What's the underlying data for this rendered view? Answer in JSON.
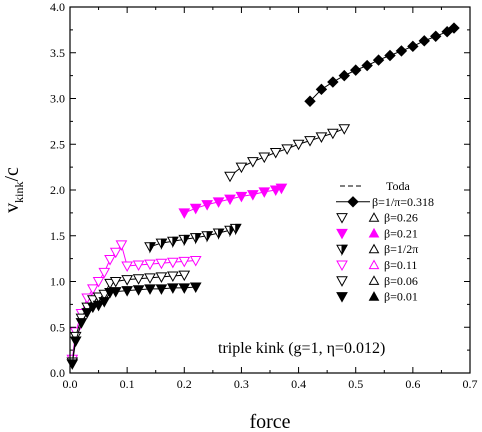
{
  "chart_data": {
    "type": "scatter",
    "xlabel": "force",
    "ylabel_main": "v",
    "ylabel_sub": "kink",
    "ylabel_tail": "/c",
    "xlim": [
      0.0,
      0.7
    ],
    "ylim": [
      0.0,
      4.0
    ],
    "xticks": [
      "0.0",
      "0.1",
      "0.2",
      "0.3",
      "0.4",
      "0.5",
      "0.6",
      "0.7"
    ],
    "yticks": [
      "0.0",
      "0.5",
      "1.0",
      "1.5",
      "2.0",
      "2.5",
      "3.0",
      "3.5",
      "4.0"
    ],
    "grid": false,
    "legend_position": "right",
    "annotation": "triple kink (g=1, η=0.012)",
    "legend": [
      {
        "label": "Toda",
        "style": "dashed-line",
        "color": "#000000"
      },
      {
        "label": "β=1/π=0.318",
        "style": "diamond-line",
        "color": "#000000"
      },
      {
        "label": "β=0.26",
        "style": "open-pair",
        "color": "#000000"
      },
      {
        "label": "β=0.21",
        "style": "filled-pair",
        "color": "#ff00ff"
      },
      {
        "label": "β=1/2π",
        "style": "half-pair",
        "color": "#000000"
      },
      {
        "label": "β=0.11",
        "style": "open-pair",
        "color": "#ff00ff"
      },
      {
        "label": "β=0.06",
        "style": "open-pair",
        "color": "#000000"
      },
      {
        "label": "β=0.01",
        "style": "filled-pair",
        "color": "#000000"
      }
    ],
    "series": [
      {
        "name": "β=1/π=0.318",
        "color": "#000000",
        "marker": "diamond",
        "x": [
          0.42,
          0.44,
          0.46,
          0.48,
          0.5,
          0.52,
          0.54,
          0.56,
          0.58,
          0.6,
          0.62,
          0.64,
          0.66,
          0.672
        ],
        "y": [
          2.97,
          3.1,
          3.18,
          3.25,
          3.31,
          3.36,
          3.42,
          3.47,
          3.52,
          3.57,
          3.63,
          3.68,
          3.73,
          3.77
        ]
      },
      {
        "name": "β=0.26",
        "color": "#000000",
        "marker": "tri-open",
        "x": [
          0.28,
          0.3,
          0.32,
          0.34,
          0.36,
          0.38,
          0.4,
          0.42,
          0.44,
          0.46,
          0.48
        ],
        "y": [
          2.15,
          2.25,
          2.31,
          2.36,
          2.41,
          2.45,
          2.5,
          2.54,
          2.58,
          2.62,
          2.67
        ]
      },
      {
        "name": "β=0.21",
        "color": "#ff00ff",
        "marker": "tri-filled",
        "x": [
          0.2,
          0.22,
          0.24,
          0.26,
          0.28,
          0.3,
          0.32,
          0.34,
          0.36,
          0.37
        ],
        "y": [
          1.75,
          1.8,
          1.84,
          1.87,
          1.9,
          1.93,
          1.95,
          1.98,
          2.0,
          2.02
        ]
      },
      {
        "name": "β=1/2π",
        "color": "#000000",
        "marker": "tri-half",
        "x": [
          0.14,
          0.16,
          0.18,
          0.2,
          0.22,
          0.24,
          0.26,
          0.28,
          0.29
        ],
        "y": [
          1.38,
          1.42,
          1.44,
          1.46,
          1.48,
          1.5,
          1.53,
          1.56,
          1.58
        ]
      },
      {
        "name": "β=0.11",
        "color": "#ff00ff",
        "marker": "tri-open",
        "x": [
          0.004,
          0.01,
          0.02,
          0.03,
          0.04,
          0.05,
          0.06,
          0.07,
          0.08,
          0.09,
          0.1,
          0.12,
          0.14,
          0.16,
          0.18,
          0.2,
          0.22
        ],
        "y": [
          0.15,
          0.45,
          0.65,
          0.82,
          0.92,
          1.0,
          1.1,
          1.24,
          1.32,
          1.4,
          1.17,
          1.18,
          1.19,
          1.2,
          1.21,
          1.22,
          1.23
        ]
      },
      {
        "name": "β=0.06",
        "color": "#000000",
        "marker": "tri-open",
        "x": [
          0.004,
          0.01,
          0.02,
          0.03,
          0.04,
          0.05,
          0.06,
          0.07,
          0.08,
          0.1,
          0.12,
          0.14,
          0.16,
          0.18,
          0.2
        ],
        "y": [
          0.12,
          0.4,
          0.6,
          0.72,
          0.8,
          0.83,
          0.86,
          0.98,
          1.0,
          1.02,
          1.03,
          1.04,
          1.05,
          1.06,
          1.07
        ]
      },
      {
        "name": "β=0.01",
        "color": "#000000",
        "marker": "tri-filled",
        "x": [
          0.004,
          0.01,
          0.02,
          0.03,
          0.04,
          0.05,
          0.06,
          0.07,
          0.08,
          0.1,
          0.12,
          0.14,
          0.16,
          0.18,
          0.2,
          0.22
        ],
        "y": [
          0.1,
          0.35,
          0.55,
          0.66,
          0.72,
          0.74,
          0.78,
          0.88,
          0.89,
          0.9,
          0.91,
          0.92,
          0.92,
          0.93,
          0.93,
          0.94
        ]
      }
    ]
  }
}
